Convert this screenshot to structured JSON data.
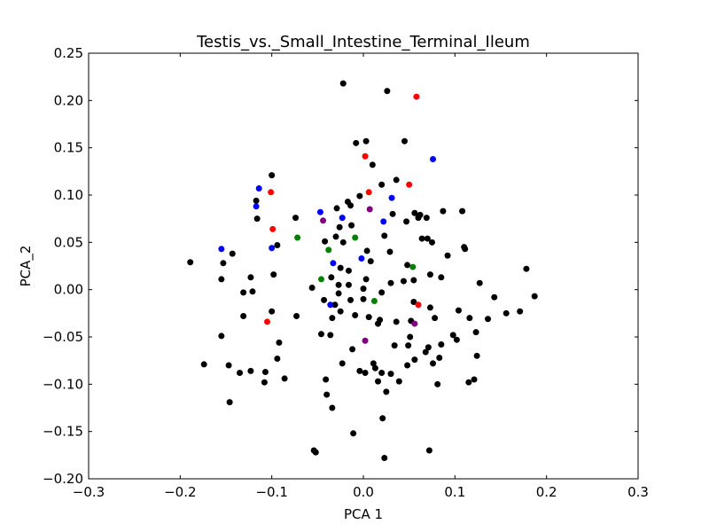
{
  "chart_data": {
    "type": "scatter",
    "title": "Testis_vs._Small_Intestine_Terminal_Ileum",
    "xlabel": "PCA 1",
    "ylabel": "PCA_2",
    "xlim": [
      -0.3,
      0.3
    ],
    "ylim": [
      -0.2,
      0.25
    ],
    "xticks": [
      -0.3,
      -0.2,
      -0.1,
      0.0,
      0.1,
      0.2,
      0.3
    ],
    "xtick_labels": [
      "−0.3",
      "−0.2",
      "−0.1",
      "0.0",
      "0.1",
      "0.2",
      "0.3"
    ],
    "yticks": [
      -0.2,
      -0.15,
      -0.1,
      -0.05,
      0.0,
      0.05,
      0.1,
      0.15,
      0.2,
      0.25
    ],
    "ytick_labels": [
      "−0.20",
      "−0.15",
      "−0.10",
      "−0.05",
      "0.00",
      "0.05",
      "0.10",
      "0.15",
      "0.20",
      "0.25"
    ],
    "grid": false,
    "series": [
      {
        "color": "#000000",
        "points": [
          [
            -0.022,
            0.218
          ],
          [
            0.026,
            0.21
          ],
          [
            -0.008,
            0.155
          ],
          [
            0.003,
            0.157
          ],
          [
            0.045,
            0.157
          ],
          [
            0.01,
            0.132
          ],
          [
            -0.1,
            0.121
          ],
          [
            0.036,
            0.116
          ],
          [
            -0.004,
            0.099
          ],
          [
            0.02,
            0.111
          ],
          [
            -0.117,
            0.094
          ],
          [
            -0.017,
            0.093
          ],
          [
            0.032,
            0.08
          ],
          [
            -0.014,
            0.089
          ],
          [
            -0.029,
            0.086
          ],
          [
            0.056,
            0.081
          ],
          [
            0.087,
            0.083
          ],
          [
            0.108,
            0.083
          ],
          [
            0.062,
            0.079
          ],
          [
            -0.116,
            0.075
          ],
          [
            -0.074,
            0.076
          ],
          [
            0.047,
            0.072
          ],
          [
            0.06,
            0.076
          ],
          [
            0.069,
            0.076
          ],
          [
            -0.03,
            0.056
          ],
          [
            -0.026,
            0.066
          ],
          [
            -0.013,
            0.068
          ],
          [
            0.07,
            0.054
          ],
          [
            -0.042,
            0.051
          ],
          [
            -0.022,
            0.05
          ],
          [
            0.023,
            0.057
          ],
          [
            0.064,
            0.054
          ],
          [
            0.11,
            0.045
          ],
          [
            0.111,
            0.043
          ],
          [
            -0.094,
            0.047
          ],
          [
            -0.143,
            0.038
          ],
          [
            0.004,
            0.041
          ],
          [
            0.029,
            0.04
          ],
          [
            0.075,
            0.05
          ],
          [
            -0.025,
            0.023
          ],
          [
            0.048,
            0.026
          ],
          [
            0.092,
            0.036
          ],
          [
            -0.153,
            0.028
          ],
          [
            -0.189,
            0.029
          ],
          [
            0.008,
            0.03
          ],
          [
            0.178,
            0.022
          ],
          [
            -0.016,
            0.02
          ],
          [
            0.073,
            0.016
          ],
          [
            -0.155,
            0.011
          ],
          [
            -0.123,
            0.013
          ],
          [
            -0.098,
            0.016
          ],
          [
            -0.035,
            0.013
          ],
          [
            0.003,
            0.011
          ],
          [
            0.044,
            0.009
          ],
          [
            0.055,
            0.01
          ],
          [
            0.127,
            0.007
          ],
          [
            -0.056,
            0.002
          ],
          [
            -0.027,
            0.005
          ],
          [
            -0.016,
            0.005
          ],
          [
            0.0,
            0.001
          ],
          [
            0.03,
            0.007
          ],
          [
            0.085,
            0.013
          ],
          [
            -0.131,
            -0.003
          ],
          [
            -0.121,
            -0.002
          ],
          [
            0.143,
            -0.008
          ],
          [
            -0.043,
            -0.011
          ],
          [
            -0.027,
            -0.004
          ],
          [
            -0.014,
            -0.011
          ],
          [
            0.0,
            -0.01
          ],
          [
            0.02,
            -0.003
          ],
          [
            0.055,
            -0.013
          ],
          [
            0.073,
            -0.019
          ],
          [
            0.104,
            -0.022
          ],
          [
            0.187,
            -0.007
          ],
          [
            -0.131,
            -0.028
          ],
          [
            -0.1,
            -0.023
          ],
          [
            -0.073,
            -0.028
          ],
          [
            -0.031,
            -0.016
          ],
          [
            -0.025,
            -0.023
          ],
          [
            -0.034,
            -0.03
          ],
          [
            -0.009,
            -0.027
          ],
          [
            0.006,
            -0.029
          ],
          [
            0.036,
            -0.034
          ],
          [
            0.052,
            -0.033
          ],
          [
            0.078,
            -0.03
          ],
          [
            0.116,
            -0.03
          ],
          [
            0.136,
            -0.031
          ],
          [
            0.156,
            -0.025
          ],
          [
            0.171,
            -0.023
          ],
          [
            -0.155,
            -0.049
          ],
          [
            -0.046,
            -0.047
          ],
          [
            -0.036,
            -0.048
          ],
          [
            0.018,
            -0.032
          ],
          [
            0.051,
            -0.05
          ],
          [
            0.016,
            -0.036
          ],
          [
            0.098,
            -0.048
          ],
          [
            0.123,
            -0.045
          ],
          [
            -0.092,
            -0.056
          ],
          [
            -0.012,
            -0.063
          ],
          [
            0.034,
            -0.059
          ],
          [
            0.049,
            -0.059
          ],
          [
            0.071,
            -0.061
          ],
          [
            0.085,
            -0.058
          ],
          [
            0.102,
            -0.053
          ],
          [
            0.124,
            -0.07
          ],
          [
            -0.174,
            -0.079
          ],
          [
            -0.147,
            -0.08
          ],
          [
            -0.123,
            -0.086
          ],
          [
            -0.094,
            -0.073
          ],
          [
            -0.023,
            -0.078
          ],
          [
            0.011,
            -0.078
          ],
          [
            0.048,
            -0.08
          ],
          [
            0.056,
            -0.074
          ],
          [
            0.076,
            -0.078
          ],
          [
            0.083,
            -0.072
          ],
          [
            0.068,
            -0.066
          ],
          [
            -0.135,
            -0.088
          ],
          [
            -0.107,
            -0.087
          ],
          [
            -0.086,
            -0.094
          ],
          [
            -0.041,
            -0.095
          ],
          [
            0.002,
            -0.088
          ],
          [
            -0.004,
            -0.086
          ],
          [
            0.013,
            -0.083
          ],
          [
            0.02,
            -0.088
          ],
          [
            0.03,
            -0.089
          ],
          [
            0.121,
            -0.095
          ],
          [
            0.115,
            -0.098
          ],
          [
            -0.108,
            -0.098
          ],
          [
            -0.146,
            -0.119
          ],
          [
            -0.04,
            -0.111
          ],
          [
            0.016,
            -0.097
          ],
          [
            0.039,
            -0.097
          ],
          [
            0.025,
            -0.108
          ],
          [
            0.081,
            -0.1
          ],
          [
            -0.034,
            -0.125
          ],
          [
            0.021,
            -0.136
          ],
          [
            -0.011,
            -0.152
          ],
          [
            -0.054,
            -0.17
          ],
          [
            -0.052,
            -0.172
          ],
          [
            0.023,
            -0.178
          ],
          [
            0.072,
            -0.17
          ]
        ]
      },
      {
        "color": "#ff0000",
        "points": [
          [
            0.058,
            0.204
          ],
          [
            0.002,
            0.141
          ],
          [
            -0.101,
            0.103
          ],
          [
            0.006,
            0.103
          ],
          [
            0.05,
            0.111
          ],
          [
            -0.099,
            0.064
          ],
          [
            -0.105,
            -0.034
          ],
          [
            0.06,
            -0.016
          ]
        ]
      },
      {
        "color": "#0000ff",
        "points": [
          [
            0.076,
            0.138
          ],
          [
            -0.114,
            0.107
          ],
          [
            -0.117,
            0.088
          ],
          [
            0.031,
            0.097
          ],
          [
            -0.047,
            0.082
          ],
          [
            -0.023,
            0.076
          ],
          [
            0.022,
            0.072
          ],
          [
            -0.155,
            0.043
          ],
          [
            -0.1,
            0.044
          ],
          [
            -0.033,
            0.028
          ],
          [
            -0.002,
            0.033
          ],
          [
            -0.036,
            -0.016
          ]
        ]
      },
      {
        "color": "#008000",
        "points": [
          [
            -0.072,
            0.055
          ],
          [
            -0.009,
            0.055
          ],
          [
            -0.038,
            0.042
          ],
          [
            0.054,
            0.024
          ],
          [
            -0.046,
            0.011
          ],
          [
            0.012,
            -0.012
          ]
        ]
      },
      {
        "color": "#800080",
        "points": [
          [
            -0.044,
            0.073
          ],
          [
            0.007,
            0.085
          ],
          [
            0.056,
            -0.036
          ],
          [
            0.002,
            -0.054
          ]
        ]
      }
    ]
  }
}
